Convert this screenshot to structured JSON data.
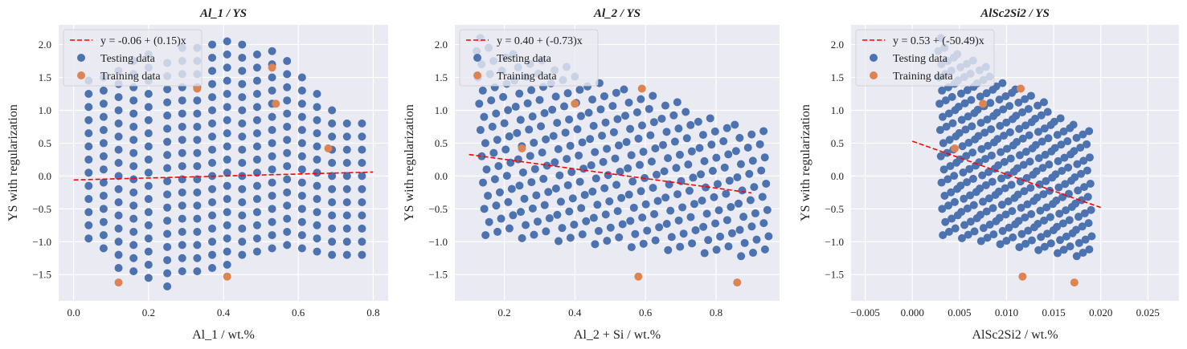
{
  "colors": {
    "plot_background": "#eaeaf2",
    "grid": "#ffffff",
    "testing": "#4c72b0",
    "training": "#dd8452",
    "fit_line": "#ff0000",
    "legend_background": "#eaeaf2",
    "legend_border": "#cccccc"
  },
  "chart_data": [
    {
      "type": "scatter",
      "title": "Al_1 / YS",
      "xlabel": "Al_1 / wt.%",
      "ylabel": "YS with regularization",
      "xlim": [
        -0.04,
        0.84
      ],
      "ylim": [
        -1.9,
        2.3
      ],
      "xticks": [
        0.0,
        0.2,
        0.4,
        0.6,
        0.8
      ],
      "xtick_labels": [
        "0.0",
        "0.2",
        "0.4",
        "0.6",
        "0.8"
      ],
      "yticks": [
        -1.5,
        -1.0,
        -0.5,
        0.0,
        0.5,
        1.0,
        1.5,
        2.0
      ],
      "ytick_labels": [
        "−1.5",
        "−1.0",
        "−0.5",
        "0.0",
        "0.5",
        "1.0",
        "1.5",
        "2.0"
      ],
      "grid": true,
      "legend_position": "top-left",
      "fit_line": {
        "label": "y = -0.06 + (0.15)x",
        "intercept": -0.06,
        "slope": 0.15,
        "x_range": [
          0.0,
          0.8
        ],
        "style": "dashed"
      },
      "series": [
        {
          "name": "Testing data",
          "generator": {
            "xs": [
              0.04,
              0.08,
              0.12,
              0.16,
              0.2,
              0.25,
              0.29,
              0.33,
              0.37,
              0.41,
              0.45,
              0.49,
              0.53,
              0.57,
              0.61,
              0.65,
              0.69,
              0.73,
              0.77
            ],
            "ymin": [
              -0.95,
              -1.1,
              -1.4,
              -1.45,
              -1.55,
              -1.68,
              -1.45,
              -1.45,
              -1.4,
              -1.35,
              -1.2,
              -1.15,
              -1.1,
              -1.05,
              -1.1,
              -1.15,
              -1.2,
              -1.2,
              -1.2
            ],
            "ymax": [
              1.45,
              1.5,
              1.75,
              1.8,
              1.85,
              1.9,
              2.0,
              2.0,
              2.05,
              2.1,
              2.05,
              2.0,
              1.9,
              1.8,
              1.6,
              1.25,
              1.0,
              0.9,
              0.9
            ],
            "dy": 0.2
          }
        },
        {
          "name": "Training data",
          "points": [
            [
              0.12,
              -1.62
            ],
            [
              0.41,
              -1.53
            ],
            [
              0.33,
              1.33
            ],
            [
              0.53,
              1.65
            ],
            [
              0.54,
              1.1
            ],
            [
              0.68,
              0.42
            ]
          ]
        }
      ]
    },
    {
      "type": "scatter",
      "title": "Al_2 / YS",
      "xlabel": "Al_2 + Si / wt.%",
      "ylabel": "YS with regularization",
      "xlim": [
        0.06,
        0.98
      ],
      "ylim": [
        -1.9,
        2.3
      ],
      "xticks": [
        0.2,
        0.4,
        0.6,
        0.8
      ],
      "xtick_labels": [
        "0.2",
        "0.4",
        "0.6",
        "0.8"
      ],
      "yticks": [
        -1.5,
        -1.0,
        -0.5,
        0.0,
        0.5,
        1.0,
        1.5,
        2.0
      ],
      "ytick_labels": [
        "−1.5",
        "−1.0",
        "−0.5",
        "0.0",
        "0.5",
        "1.0",
        "1.5",
        "2.0"
      ],
      "grid": true,
      "legend_position": "top-left",
      "fit_line": {
        "label": "y = 0.40 + (-0.73)x",
        "intercept": 0.4,
        "slope": -0.73,
        "x_range": [
          0.1,
          0.9
        ],
        "style": "dashed"
      },
      "series": [
        {
          "name": "Testing data",
          "generator": {
            "x_start": 0.15,
            "x_end": 0.94,
            "columns": 24,
            "ymin": -1.25,
            "ymax": 2.1,
            "dy": 0.2,
            "shift": 0.26,
            "lower_left": 0.35,
            "upper_right": 1.4,
            "xstagger": 0.012
          }
        },
        {
          "name": "Training data",
          "points": [
            [
              0.25,
              0.42
            ],
            [
              0.4,
              1.1
            ],
            [
              0.59,
              1.33
            ],
            [
              0.58,
              -1.53
            ],
            [
              0.86,
              -1.62
            ]
          ]
        }
      ]
    },
    {
      "type": "scatter",
      "title": "AlSc2Si2 / YS",
      "xlabel": "AlSc2Si2 / wt.%",
      "ylabel": "YS with regularization",
      "xlim": [
        -0.0065,
        0.0283
      ],
      "ylim": [
        -1.9,
        2.3
      ],
      "xticks": [
        -0.005,
        0.0,
        0.005,
        0.01,
        0.015,
        0.02,
        0.025
      ],
      "xtick_labels": [
        "−0.005",
        "0.000",
        "0.005",
        "0.010",
        "0.015",
        "0.020",
        "0.025"
      ],
      "yticks": [
        -1.5,
        -1.0,
        -0.5,
        0.0,
        0.5,
        1.0,
        1.5,
        2.0
      ],
      "ytick_labels": [
        "−1.5",
        "−1.0",
        "−0.5",
        "0.0",
        "0.5",
        "1.0",
        "1.5",
        "2.0"
      ],
      "grid": true,
      "legend_position": "top-left",
      "fit_line": {
        "label": "y = 0.53 + (-50.49)x",
        "intercept": 0.53,
        "slope": -50.49,
        "x_range": [
          0.0,
          0.02
        ],
        "style": "dashed"
      },
      "series": [
        {
          "name": "Testing data",
          "generator": {
            "x_start": 0.0033,
            "x_end": 0.0188,
            "columns": 24,
            "ymin": -1.25,
            "ymax": 2.1,
            "dy": 0.2,
            "shift": 0.26,
            "lower_left": 0.35,
            "upper_right": 1.4,
            "xstagger": 0.0003
          }
        },
        {
          "name": "Training data",
          "points": [
            [
              0.0045,
              0.42
            ],
            [
              0.0075,
              1.1
            ],
            [
              0.0115,
              1.33
            ],
            [
              0.0117,
              -1.53
            ],
            [
              0.0172,
              -1.62
            ]
          ]
        }
      ]
    }
  ]
}
